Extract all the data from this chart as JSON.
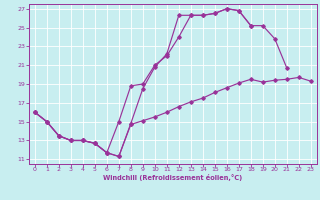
{
  "bg_color": "#c8eef0",
  "line_color": "#993399",
  "grid_color": "#ffffff",
  "xlim": [
    -0.5,
    23.5
  ],
  "ylim": [
    10.5,
    27.5
  ],
  "xticks": [
    0,
    1,
    2,
    3,
    4,
    5,
    6,
    7,
    8,
    9,
    10,
    11,
    12,
    13,
    14,
    15,
    16,
    17,
    18,
    19,
    20,
    21,
    22,
    23
  ],
  "yticks": [
    11,
    13,
    15,
    17,
    19,
    21,
    23,
    25,
    27
  ],
  "xlabel": "Windchill (Refroidissement éolien,°C)",
  "line1_x": [
    0,
    1,
    2,
    3,
    4,
    5,
    6,
    7,
    8,
    9,
    10,
    11,
    12,
    13,
    14,
    15,
    16,
    17,
    18
  ],
  "line1_y": [
    16.0,
    15.0,
    13.5,
    13.0,
    13.0,
    12.7,
    11.7,
    11.3,
    14.8,
    18.5,
    20.8,
    22.2,
    26.3,
    26.3,
    26.3,
    26.5,
    27.0,
    26.8,
    25.2
  ],
  "line2_x": [
    0,
    1,
    2,
    3,
    4,
    5,
    6,
    7,
    8,
    9,
    10,
    11,
    12,
    13,
    14,
    15,
    16,
    17,
    18,
    19,
    20,
    21
  ],
  "line2_y": [
    16.0,
    15.0,
    13.5,
    13.0,
    13.0,
    12.7,
    11.7,
    15.0,
    18.8,
    19.0,
    21.0,
    22.0,
    24.0,
    26.3,
    26.3,
    26.5,
    27.0,
    26.8,
    25.2,
    25.2,
    23.8,
    20.7
  ],
  "line3_x": [
    0,
    1,
    2,
    3,
    4,
    5,
    6,
    7,
    8,
    9,
    10,
    11,
    12,
    13,
    14,
    15,
    16,
    17,
    18,
    19,
    20,
    21,
    22,
    23
  ],
  "line3_y": [
    16.0,
    15.0,
    13.5,
    13.0,
    13.0,
    12.7,
    11.7,
    11.3,
    14.7,
    15.1,
    15.5,
    16.0,
    16.6,
    17.1,
    17.5,
    18.1,
    18.6,
    19.1,
    19.5,
    19.2,
    19.4,
    19.5,
    19.7,
    19.3
  ]
}
